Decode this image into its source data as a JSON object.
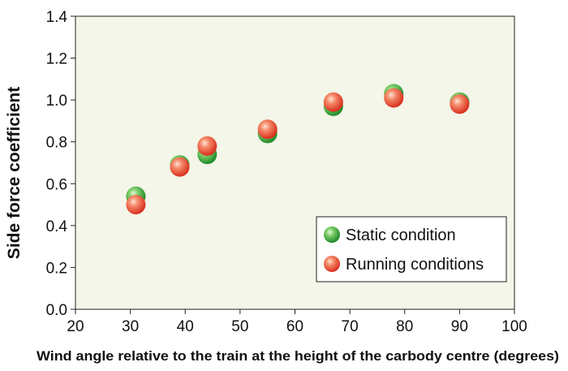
{
  "chart_data": {
    "type": "scatter",
    "title": "",
    "xlabel": "Wind angle relative to the train at the height of the carbody centre (degrees)",
    "ylabel": "Side force coefficient",
    "xlim": [
      20,
      100
    ],
    "ylim": [
      0.0,
      1.4
    ],
    "xticks": [
      "20",
      "30",
      "40",
      "50",
      "60",
      "70",
      "80",
      "90",
      "100"
    ],
    "yticks": [
      "0.0",
      "0.2",
      "0.4",
      "0.6",
      "0.8",
      "1.0",
      "1.2",
      "1.4"
    ],
    "grid": false,
    "legend_position": "bottom-right",
    "series": [
      {
        "name": "Static condition",
        "color": "#3aa63a",
        "points": [
          {
            "x": 31,
            "y": 0.54
          },
          {
            "x": 39,
            "y": 0.69
          },
          {
            "x": 44,
            "y": 0.74
          },
          {
            "x": 55,
            "y": 0.84
          },
          {
            "x": 67,
            "y": 0.97
          },
          {
            "x": 78,
            "y": 1.03
          },
          {
            "x": 90,
            "y": 0.99
          }
        ]
      },
      {
        "name": "Running conditions",
        "color": "#e8503a",
        "points": [
          {
            "x": 31,
            "y": 0.5
          },
          {
            "x": 39,
            "y": 0.68
          },
          {
            "x": 44,
            "y": 0.78
          },
          {
            "x": 55,
            "y": 0.86
          },
          {
            "x": 67,
            "y": 0.99
          },
          {
            "x": 78,
            "y": 1.01
          },
          {
            "x": 90,
            "y": 0.98
          }
        ]
      }
    ]
  }
}
